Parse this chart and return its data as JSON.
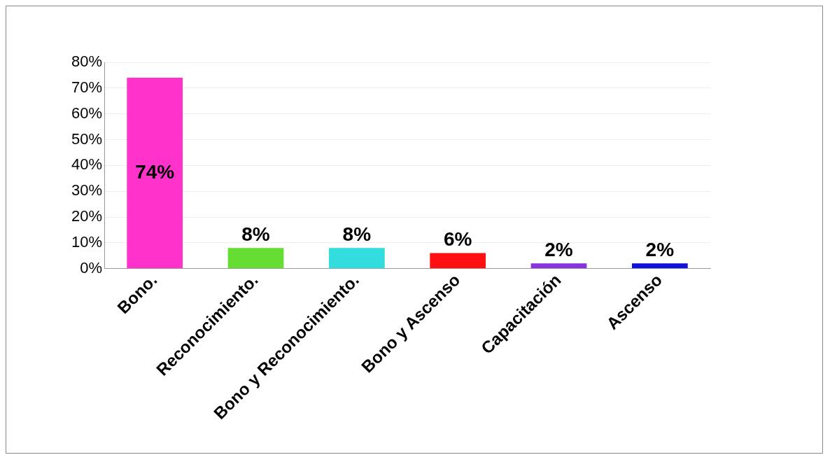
{
  "chart_data": {
    "type": "bar",
    "categories": [
      "Bono.",
      "Reconocimiento.",
      "Bono y Reconocimiento.",
      "Bono y Ascenso",
      "Capacitación",
      "Ascenso"
    ],
    "values": [
      74,
      8,
      8,
      6,
      2,
      2
    ],
    "colors": [
      "#ff33cc",
      "#66dd33",
      "#33dddd",
      "#ff1111",
      "#8833dd",
      "#1111dd"
    ],
    "value_labels": [
      "74%",
      "8%",
      "8%",
      "6%",
      "2%",
      "2%"
    ],
    "ylim": [
      0,
      80
    ],
    "yticks": [
      {
        "value": 0,
        "label": "0%"
      },
      {
        "value": 10,
        "label": "10%"
      },
      {
        "value": 20,
        "label": "20%"
      },
      {
        "value": 30,
        "label": "30%"
      },
      {
        "value": 40,
        "label": "40%"
      },
      {
        "value": 50,
        "label": "50%"
      },
      {
        "value": 60,
        "label": "60%"
      },
      {
        "value": 70,
        "label": "70%"
      },
      {
        "value": 80,
        "label": "80%"
      }
    ],
    "grid": "y"
  }
}
